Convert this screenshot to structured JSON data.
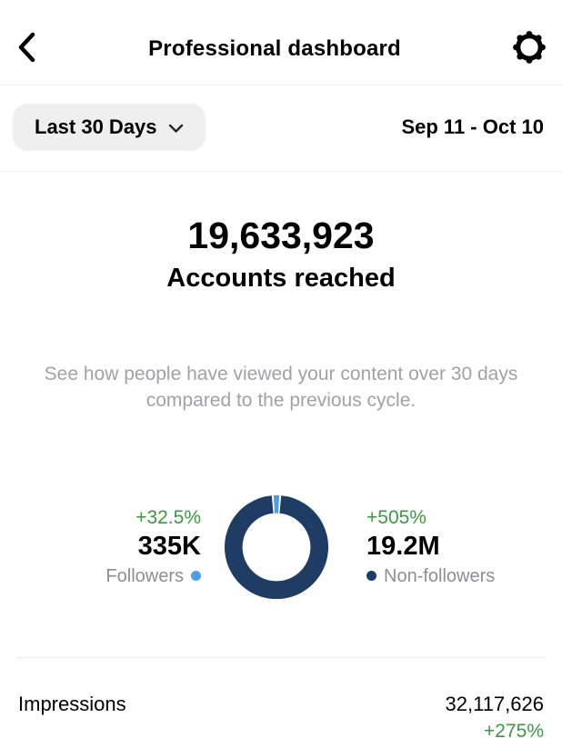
{
  "header": {
    "title": "Professional dashboard"
  },
  "filters": {
    "range_button_label": "Last 30 Days",
    "date_range": "Sep 11 - Oct 10"
  },
  "reach": {
    "value": "19,633,923",
    "label": "Accounts reached",
    "description": "See how people have viewed your content over 30 days compared to the previous cycle."
  },
  "chart_data": {
    "type": "pie",
    "subtype": "donut",
    "legend_position": "sides",
    "segments": [
      {
        "name": "Followers",
        "value": 335000,
        "display_value": "335K",
        "change": "+32.5%",
        "color": "#4c9eea",
        "legend_side": "left"
      },
      {
        "name": "Non-followers",
        "value": 19200000,
        "display_value": "19.2M",
        "change": "+505%",
        "color": "#1e3c64",
        "legend_side": "right"
      }
    ]
  },
  "metrics": [
    {
      "label": "Impressions",
      "value": "32,117,626",
      "change": "+275%"
    }
  ],
  "colors": {
    "positive_change": "#3c9742",
    "followers_blue": "#4c9eea",
    "non_followers_navy": "#1e3c64",
    "muted_text": "#8e8e93",
    "pill_background": "#efefef"
  }
}
